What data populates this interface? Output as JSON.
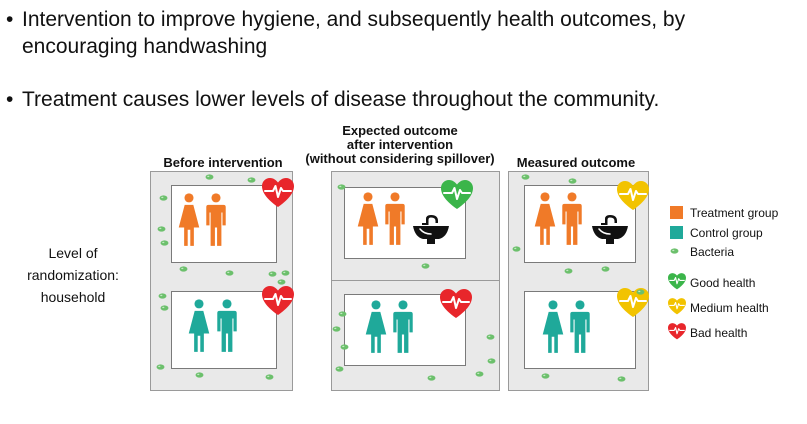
{
  "bullets": {
    "b1_line1": "Intervention to improve hygiene, and subsequently health outcomes, by",
    "b1_line2": "encouraging handwashing",
    "b2": "Treatment causes lower levels of disease throughout the community.",
    "marker": "•"
  },
  "columns": {
    "before": "Before intervention",
    "expected_l1": "Expected outcome",
    "expected_l2": "after intervention",
    "expected_l3": "(without considering spillover)",
    "measured": "Measured outcome"
  },
  "level": {
    "l1": "Level of",
    "l2": "randomization:",
    "l3": "household"
  },
  "legend": {
    "treatment": "Treatment group",
    "control": "Control group",
    "bacteria": "Bacteria",
    "good": "Good health",
    "medium": "Medium health",
    "bad": "Bad health"
  },
  "colors": {
    "treatment": "#f07a28",
    "control": "#1fa99a",
    "bacteria": "#6cc06c",
    "good": "#3bb54a",
    "medium": "#f2c300",
    "bad": "#e8262b",
    "panel": "#e9e9e9"
  },
  "icons": {
    "person": "person-icon",
    "heart": "heart-pulse-icon",
    "sink": "sink-icon",
    "bacteria": "bacteria-icon"
  }
}
